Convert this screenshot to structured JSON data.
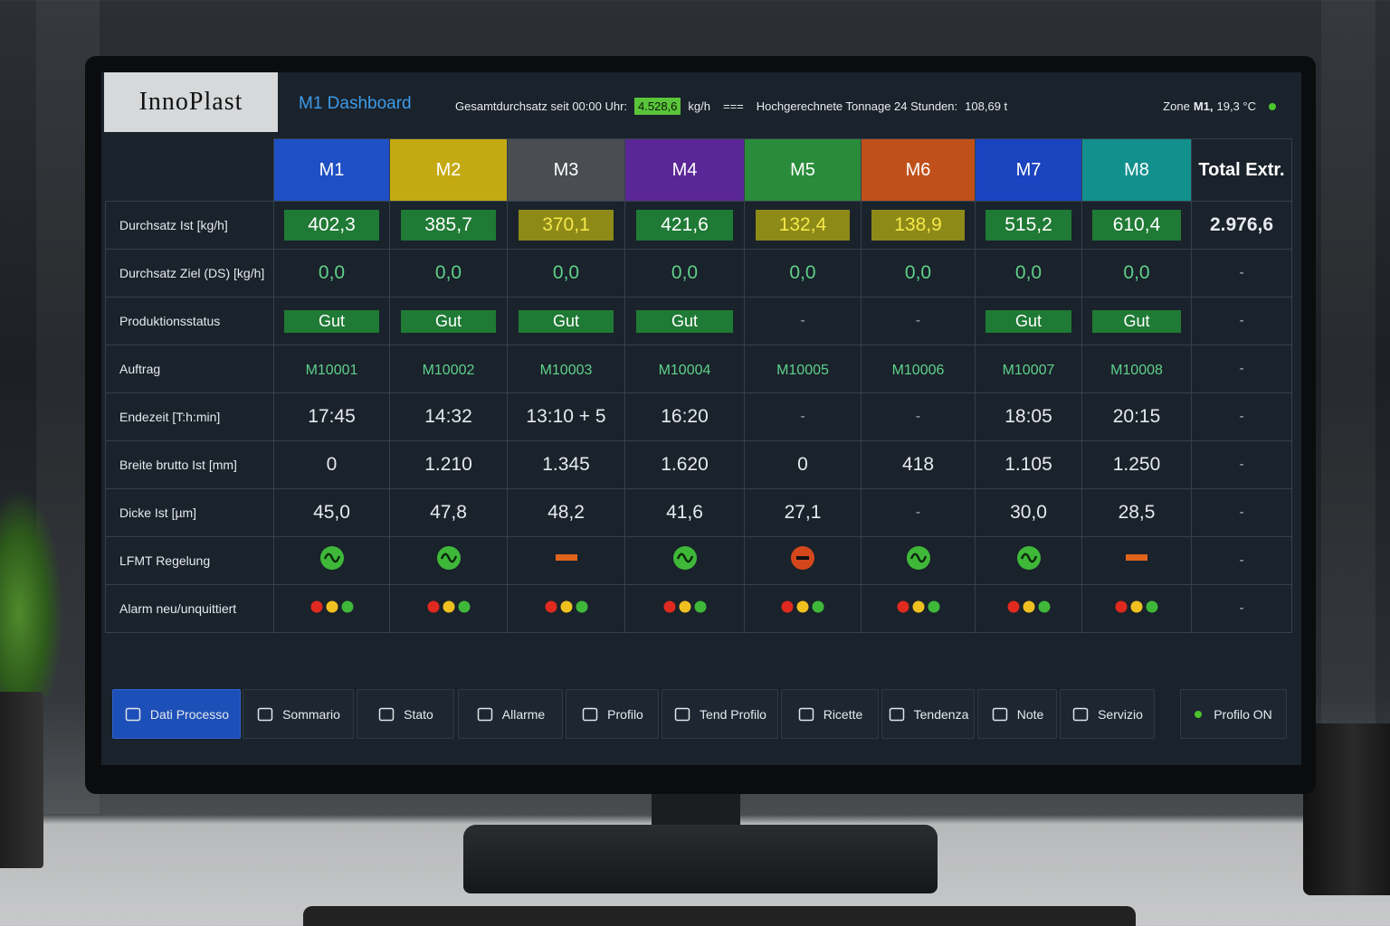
{
  "header": {
    "logo": "InnoPlast",
    "title": "M1 Dashboard",
    "total_label": "Gesamtdurchsatz seit 00:00 Uhr:",
    "total_value": "4.528,6",
    "total_unit": "kg/h",
    "separator": "===",
    "forecast_label": "Hochgerechnete Tonnage 24 Stunden:",
    "forecast_value": "108,69 t",
    "zone_label": "Zone",
    "zone_machine": "M1,",
    "zone_temp": "19,3 °C"
  },
  "table": {
    "columns": [
      {
        "name": "M1",
        "color": "#1f4fc4"
      },
      {
        "name": "M2",
        "color": "#c4aa12"
      },
      {
        "name": "M3",
        "color": "#4a4d51"
      },
      {
        "name": "M4",
        "color": "#5b2796"
      },
      {
        "name": "M5",
        "color": "#2a8c3a"
      },
      {
        "name": "M6",
        "color": "#c0501a"
      },
      {
        "name": "M7",
        "color": "#1b44c0"
      },
      {
        "name": "M8",
        "color": "#12908e"
      }
    ],
    "total_header": "Total Extr.",
    "rows": [
      {
        "label": "Durchsatz Ist [kg/h]",
        "cells": [
          "402,3",
          "385,7",
          "370,1",
          "421,6",
          "132,4",
          "138,9",
          "515,2",
          "610,4"
        ],
        "total": "2.976,6"
      },
      {
        "label": "Durchsatz Ziel (DS) [kg/h]",
        "cells": [
          "0,0",
          "0,0",
          "0,0",
          "0,0",
          "0,0",
          "0,0",
          "0,0",
          "0,0"
        ],
        "total": "-"
      },
      {
        "label": "Produktionsstatus",
        "cells": [
          "Gut",
          "Gut",
          "Gut",
          "Gut",
          "-",
          "-",
          "Gut",
          "Gut"
        ],
        "total": "-"
      },
      {
        "label": "Auftrag",
        "cells": [
          "M10001",
          "M10002",
          "M10003",
          "M10004",
          "M10005",
          "M10006",
          "M10007",
          "M10008"
        ],
        "total": "-"
      },
      {
        "label": "Endezeit [T:h:min]",
        "cells": [
          "17:45",
          "14:32",
          "13:10 + 5",
          "16:20",
          "-",
          "-",
          "18:05",
          "20:15"
        ],
        "total": "-"
      },
      {
        "label": "Breite brutto Ist [mm]",
        "cells": [
          "0",
          "1.210",
          "1.345",
          "1.620",
          "0",
          "418",
          "1.105",
          "1.250"
        ],
        "total": "-"
      },
      {
        "label": "Dicke Ist [µm]",
        "cells": [
          "45,0",
          "47,8",
          "48,2",
          "41,6",
          "27,1",
          "-",
          "30,0",
          "28,5"
        ],
        "total": "-"
      },
      {
        "label": "LFMT Regelung",
        "total": "-"
      },
      {
        "label": "Alarm neu/unquittiert",
        "total": "-"
      }
    ]
  },
  "nav": [
    "Dati Processo",
    "Sommario",
    "Stato",
    "Allarme",
    "Profilo",
    "Tend Profilo",
    "Ricette",
    "Tendenza",
    "Note",
    "Servizio"
  ],
  "profile_status": "Profilo ON"
}
